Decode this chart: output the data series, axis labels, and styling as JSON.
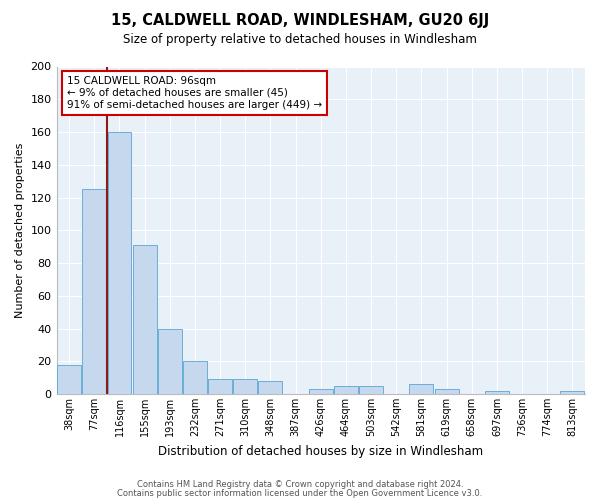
{
  "title": "15, CALDWELL ROAD, WINDLESHAM, GU20 6JJ",
  "subtitle": "Size of property relative to detached houses in Windlesham",
  "xlabel": "Distribution of detached houses by size in Windlesham",
  "ylabel": "Number of detached properties",
  "categories": [
    "38sqm",
    "77sqm",
    "116sqm",
    "155sqm",
    "193sqm",
    "232sqm",
    "271sqm",
    "310sqm",
    "348sqm",
    "387sqm",
    "426sqm",
    "464sqm",
    "503sqm",
    "542sqm",
    "581sqm",
    "619sqm",
    "658sqm",
    "697sqm",
    "736sqm",
    "774sqm",
    "813sqm"
  ],
  "values": [
    18,
    125,
    160,
    91,
    40,
    20,
    9,
    9,
    8,
    0,
    3,
    5,
    5,
    0,
    6,
    3,
    0,
    2,
    0,
    0,
    2
  ],
  "bar_color": "#c5d8ed",
  "bar_edge_color": "#6aaed6",
  "background_color": "#ffffff",
  "plot_bg_color": "#e8f0f8",
  "vline_color": "#8b1a1a",
  "annotation_text": "15 CALDWELL ROAD: 96sqm\n← 9% of detached houses are smaller (45)\n91% of semi-detached houses are larger (449) →",
  "annotation_box_color": "#ffffff",
  "annotation_box_edge": "#cc0000",
  "ylim": [
    0,
    200
  ],
  "yticks": [
    0,
    20,
    40,
    60,
    80,
    100,
    120,
    140,
    160,
    180,
    200
  ],
  "footer1": "Contains HM Land Registry data © Crown copyright and database right 2024.",
  "footer2": "Contains public sector information licensed under the Open Government Licence v3.0."
}
